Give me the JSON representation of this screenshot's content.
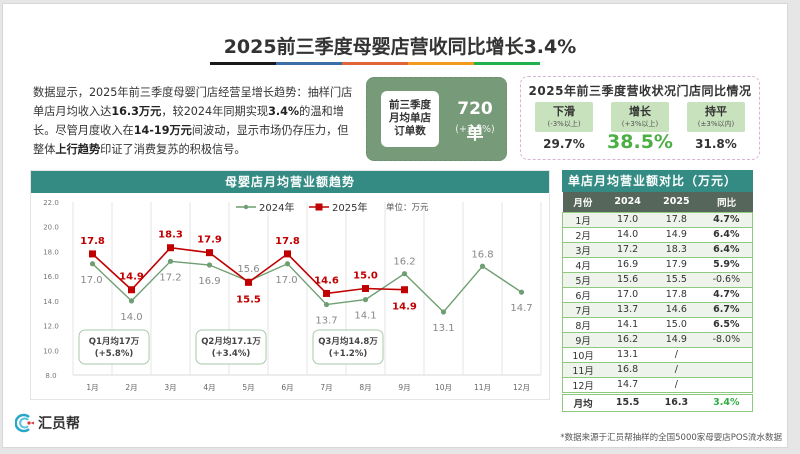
{
  "title": "2025前三季度母婴店营收同比增长3.4%",
  "title_bar_colors": [
    "#1a1a1a",
    "#3a6ea5",
    "#e0663a",
    "#f29a1e",
    "#21b04b"
  ],
  "intro": {
    "p1": "数据显示，2025年前三季度母婴门店经营呈增长趋势：抽样门店单店月均收入达",
    "b1": "16.3万元",
    "p2": "，较2024年同期实现",
    "b2": "3.4%",
    "p3": "的温和增长。尽管月度收入在",
    "b3": "14-19万元",
    "p4": "间波动，显示市场仍存压力，但整体",
    "b4": "上行趋势",
    "p5": "印证了消费复苏的积极信号。"
  },
  "orders_card": {
    "label_lines": [
      "前三季度",
      "月均单店",
      "订单数"
    ],
    "value": "720 单",
    "change": "(+3.7%)"
  },
  "store_status": {
    "title": "2025年前三季度营收状况门店同比情况",
    "items": [
      {
        "name": "下滑",
        "sub": "(-3%以上)",
        "pct": "29.7%"
      },
      {
        "name": "增长",
        "sub": "(+3%以上)",
        "pct": "38.5%"
      },
      {
        "name": "持平",
        "sub": "(±3%以内)",
        "pct": "31.8%"
      }
    ]
  },
  "chart_title": "母婴店月均营业额趋势",
  "chart_data": {
    "type": "line",
    "title": "母婴店月均营业额趋势",
    "unit_label": "单位：万元",
    "categories": [
      "1月",
      "2月",
      "3月",
      "4月",
      "5月",
      "6月",
      "7月",
      "8月",
      "9月",
      "10月",
      "11月",
      "12月"
    ],
    "series": [
      {
        "name": "2024年",
        "color": "#6f9e72",
        "values": [
          17.0,
          14.0,
          17.2,
          16.9,
          15.6,
          17.0,
          13.7,
          14.1,
          16.2,
          13.1,
          16.8,
          14.7
        ]
      },
      {
        "name": "2025年",
        "color": "#c00000",
        "values": [
          17.8,
          14.9,
          18.3,
          17.9,
          15.5,
          17.8,
          14.6,
          15.0,
          14.9,
          null,
          null,
          null
        ]
      }
    ],
    "ylim": [
      8.0,
      22.0
    ],
    "yticks": [
      "8.0",
      "10.0",
      "12.0",
      "14.0",
      "16.0",
      "18.0",
      "20.0",
      "22.0"
    ],
    "legend": "top-center",
    "grid": "vertical",
    "annotations": [
      {
        "line1": "Q1月均17万",
        "line2": "(+5.8%)"
      },
      {
        "line1": "Q2月均17.1万",
        "line2": "(+3.4%)"
      },
      {
        "line1": "Q3月均14.8万",
        "line2": "(+1.2%)"
      }
    ]
  },
  "table": {
    "title": "单店月均营业额对比（万元）",
    "headers": [
      "月份",
      "2024",
      "2025",
      "同比"
    ],
    "rows": [
      [
        "1月",
        "17.0",
        "17.8",
        "4.7%"
      ],
      [
        "2月",
        "14.0",
        "14.9",
        "6.4%"
      ],
      [
        "3月",
        "17.2",
        "18.3",
        "6.4%"
      ],
      [
        "4月",
        "16.9",
        "17.9",
        "5.9%"
      ],
      [
        "5月",
        "15.6",
        "15.5",
        "-0.6%"
      ],
      [
        "6月",
        "17.0",
        "17.8",
        "4.7%"
      ],
      [
        "7月",
        "13.7",
        "14.6",
        "6.7%"
      ],
      [
        "8月",
        "14.1",
        "15.0",
        "6.5%"
      ],
      [
        "9月",
        "16.2",
        "14.9",
        "-8.0%"
      ],
      [
        "10月",
        "13.1",
        "/",
        ""
      ],
      [
        "11月",
        "16.8",
        "/",
        ""
      ],
      [
        "12月",
        "14.7",
        "/",
        ""
      ]
    ],
    "footer": [
      "月均",
      "15.5",
      "16.3",
      "3.4%"
    ]
  },
  "brand": "汇员帮",
  "footnote": "*数据来源于汇员帮抽样的全国5000家母婴店POS流水数据"
}
